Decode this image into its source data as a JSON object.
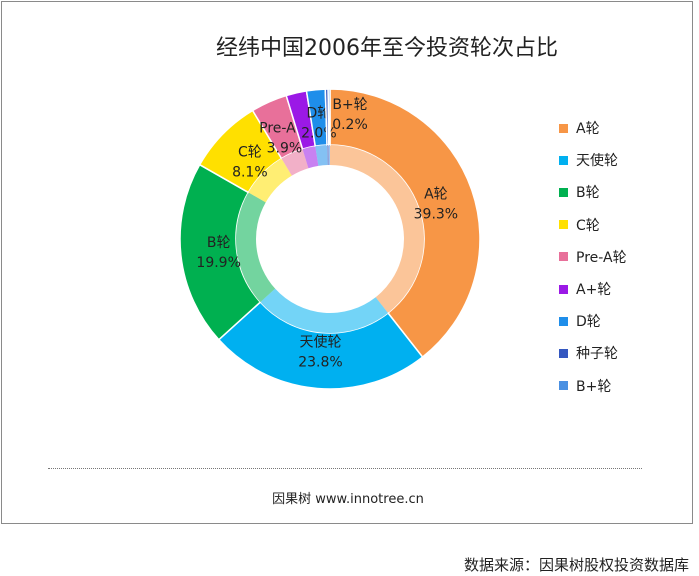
{
  "chart_data": {
    "type": "pie",
    "title": "经纬中国2006年至今投资轮次占比",
    "categories": [
      "A轮",
      "天使轮",
      "B轮",
      "C轮",
      "Pre-A轮",
      "A+轮",
      "D轮",
      "种子轮",
      "B+轮"
    ],
    "values": [
      39.3,
      23.8,
      19.9,
      8.1,
      3.9,
      2.2,
      2.0,
      0.3,
      0.2
    ],
    "labels": [
      "39.3%",
      "23.8%",
      "19.9%",
      "8.1%",
      "3.9%",
      "",
      "2.0%",
      "",
      "0.2%"
    ],
    "colors": [
      "#F79646",
      "#00B0F0",
      "#00B050",
      "#FFE000",
      "#E8709A",
      "#9B19E6",
      "#1F8EEA",
      "#3457C0",
      "#4A90E2"
    ],
    "legend_position": "right",
    "style": "donut"
  },
  "footer": {
    "site": "因果树 www.innotree.cn"
  },
  "source": {
    "text": "数据来源：因果树股权投资数据库"
  }
}
